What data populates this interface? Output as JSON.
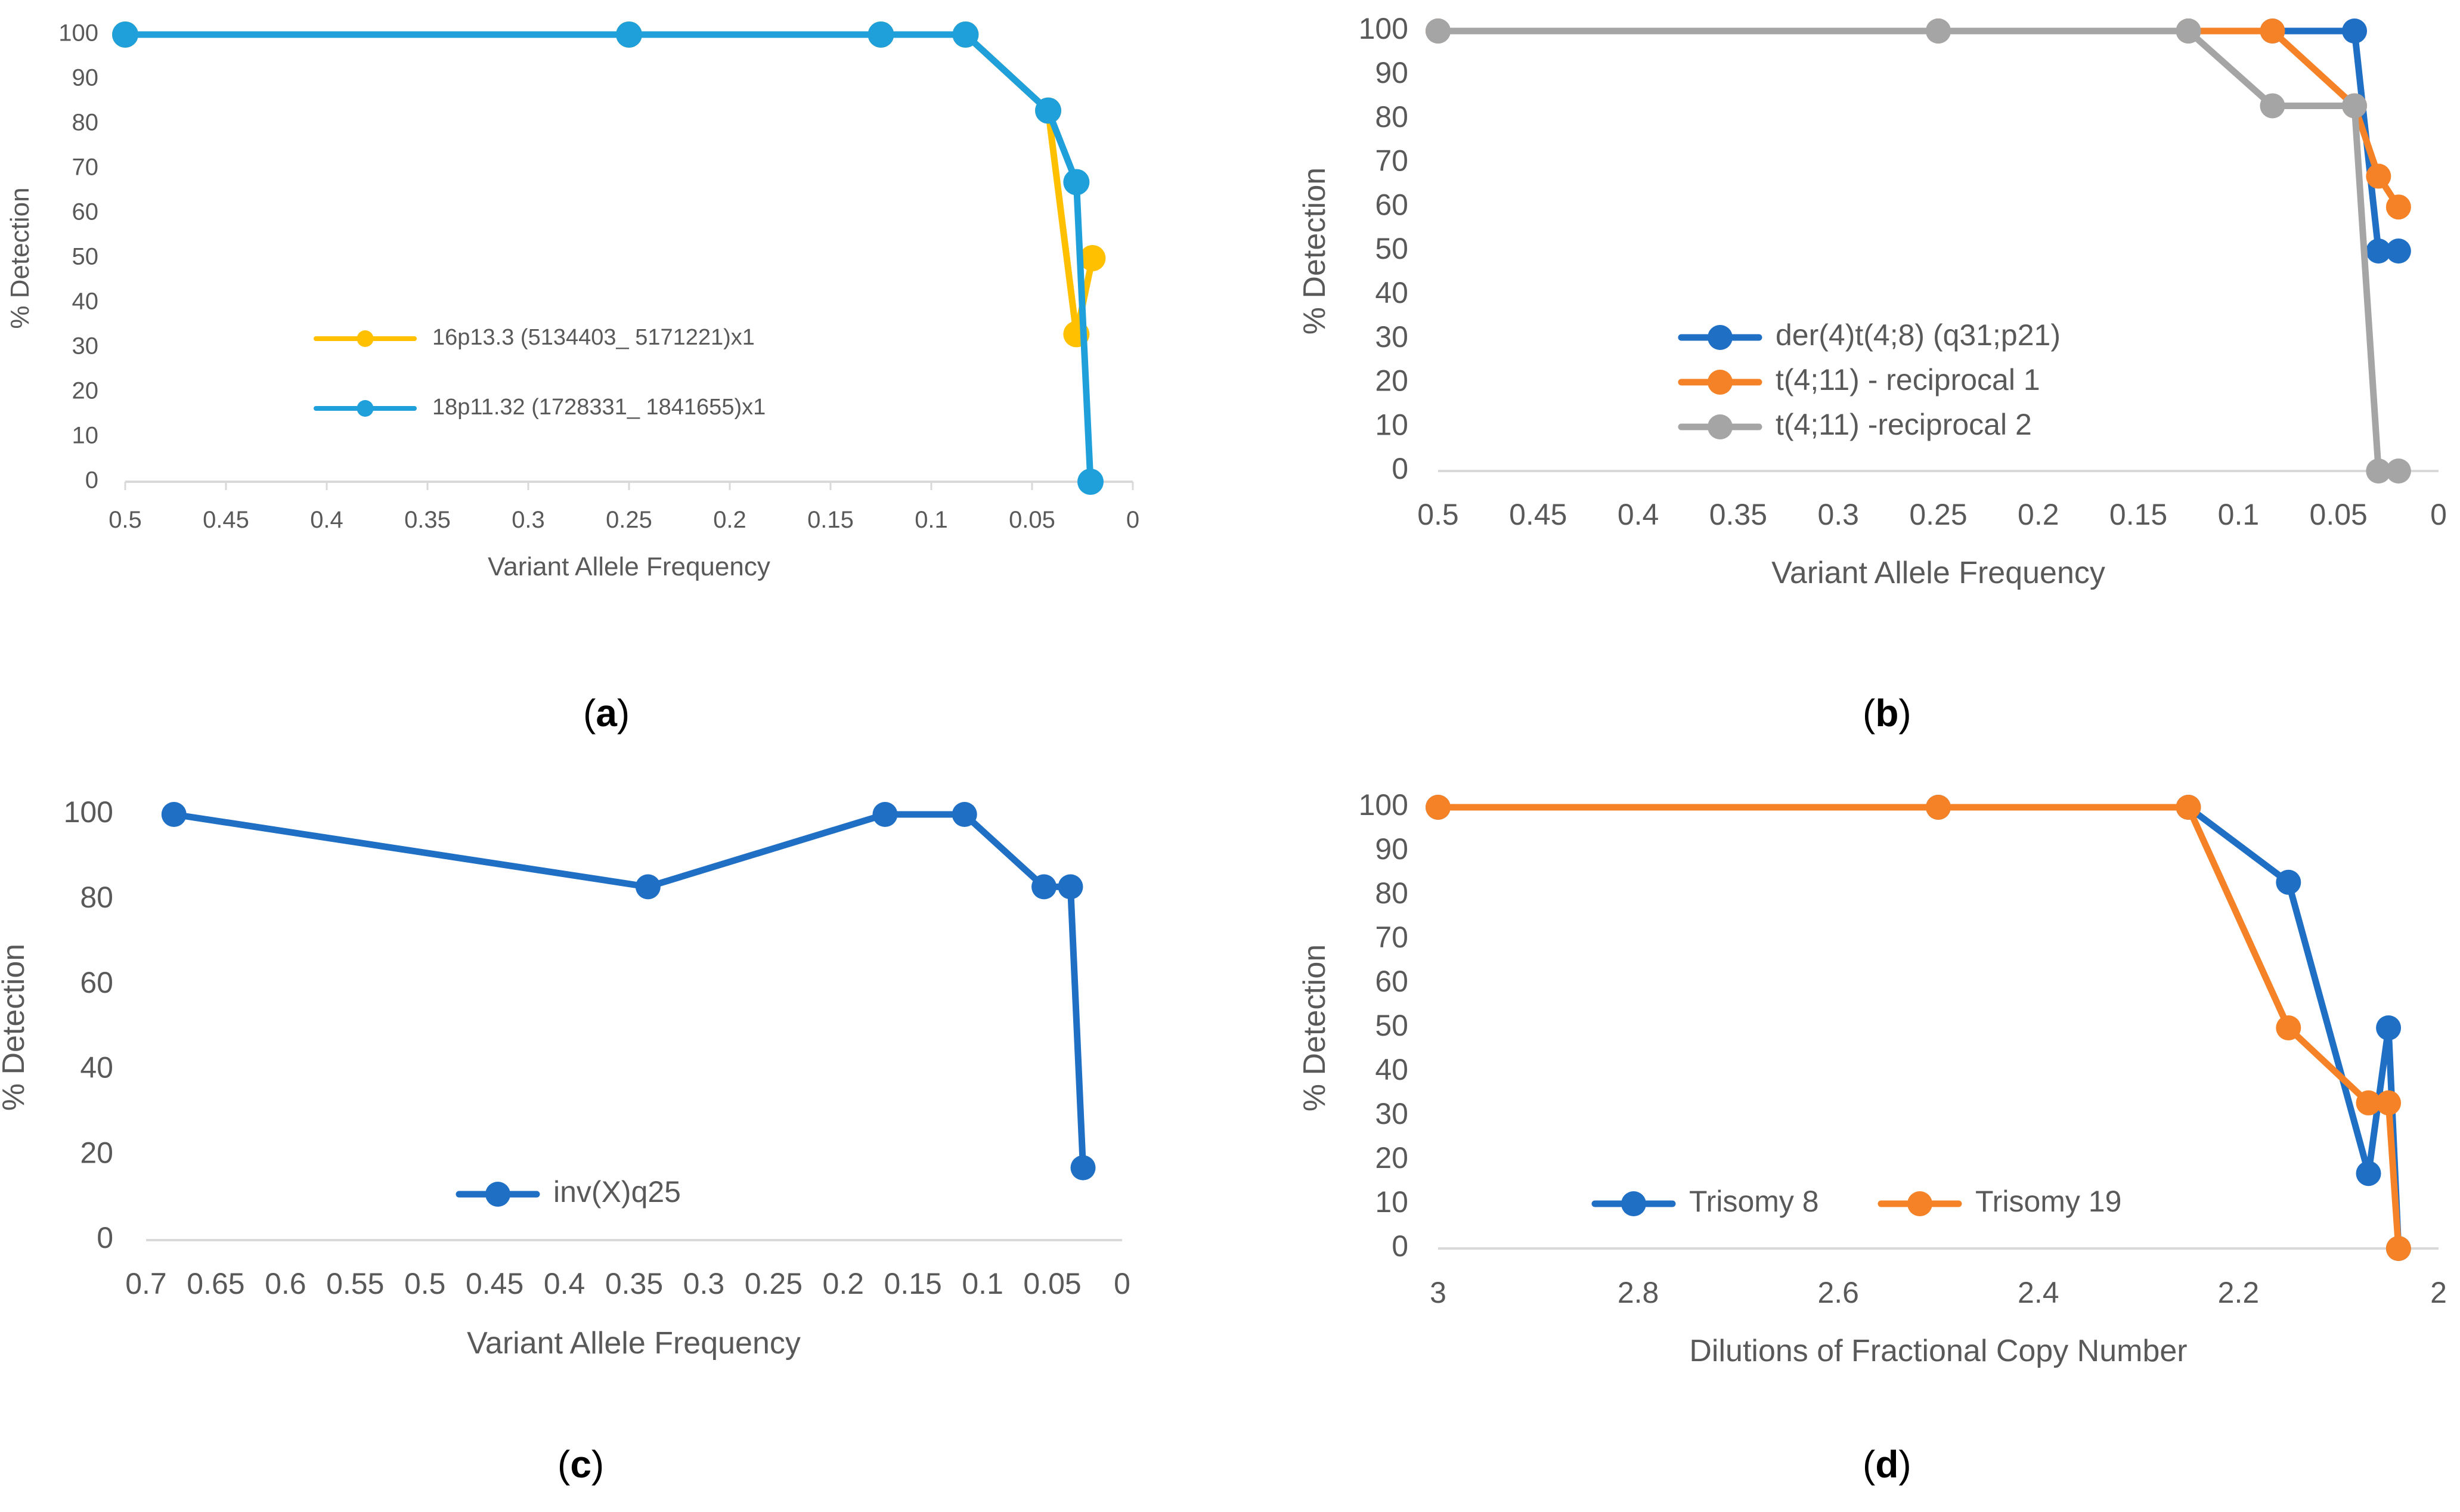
{
  "chart_data": [
    {
      "panel_label": "a",
      "type": "line",
      "xlabel": "Variant Allele Frequency",
      "ylabel": "% Detection",
      "xlim": [
        0.5,
        0
      ],
      "ylim": [
        0,
        100
      ],
      "x_ticks": [
        "0.5",
        "0.45",
        "0.4",
        "0.35",
        "0.3",
        "0.25",
        "0.2",
        "0.15",
        "0.1",
        "0.05",
        "0"
      ],
      "y_ticks": [
        "0",
        "10",
        "20",
        "30",
        "40",
        "50",
        "60",
        "70",
        "80",
        "90",
        "100"
      ],
      "legend_position": "center-left",
      "series": [
        {
          "name": "16p13.3 (5134403_ 5171221)x1",
          "color": "#FFC000",
          "x": [
            0.5,
            0.25,
            0.125,
            0.083,
            0.042,
            0.028,
            0.02
          ],
          "values": [
            100,
            100,
            100,
            100,
            83,
            33,
            50
          ]
        },
        {
          "name": "18p11.32 (1728331_ 1841655)x1",
          "color": "#1FA0DB",
          "x": [
            0.5,
            0.25,
            0.125,
            0.083,
            0.042,
            0.028,
            0.021
          ],
          "values": [
            100,
            100,
            100,
            100,
            83,
            67,
            0
          ]
        }
      ]
    },
    {
      "panel_label": "b",
      "type": "line",
      "xlabel": "Variant Allele Frequency",
      "ylabel": "% Detection",
      "xlim": [
        0.5,
        0
      ],
      "ylim": [
        0,
        100
      ],
      "x_ticks": [
        "0.5",
        "0.45",
        "0.4",
        "0.35",
        "0.3",
        "0.25",
        "0.2",
        "0.15",
        "0.1",
        "0.05",
        "0"
      ],
      "y_ticks": [
        "0",
        "10",
        "20",
        "30",
        "40",
        "50",
        "60",
        "70",
        "80",
        "90",
        "100"
      ],
      "legend_position": "bottom-left",
      "series": [
        {
          "name": "der(4)t(4;8) (q31;p21)",
          "color": "#1F6FC5",
          "x": [
            0.5,
            0.25,
            0.125,
            0.083,
            0.042,
            0.03,
            0.02
          ],
          "values": [
            100,
            100,
            100,
            100,
            100,
            50,
            50
          ]
        },
        {
          "name": "t(4;11) - reciprocal 1",
          "color": "#F58226",
          "x": [
            0.5,
            0.25,
            0.125,
            0.083,
            0.042,
            0.03,
            0.02
          ],
          "values": [
            100,
            100,
            100,
            100,
            83,
            67,
            60
          ]
        },
        {
          "name": "t(4;11) -reciprocal 2",
          "color": "#A5A5A5",
          "x": [
            0.5,
            0.25,
            0.125,
            0.083,
            0.042,
            0.03,
            0.02
          ],
          "values": [
            100,
            100,
            100,
            83,
            83,
            0,
            0
          ]
        }
      ]
    },
    {
      "panel_label": "c",
      "type": "line",
      "xlabel": "Variant Allele Frequency",
      "ylabel": "% Detection",
      "xlim": [
        0.7,
        0
      ],
      "ylim": [
        0,
        100
      ],
      "x_ticks": [
        "0.7",
        "0.65",
        "0.6",
        "0.55",
        "0.5",
        "0.45",
        "0.4",
        "0.35",
        "0.3",
        "0.25",
        "0.2",
        "0.15",
        "0.1",
        "0.05",
        "0"
      ],
      "y_ticks": [
        "0",
        "20",
        "40",
        "60",
        "80",
        "100"
      ],
      "legend_position": "bottom-center",
      "series": [
        {
          "name": "inv(X)q25",
          "color": "#1F6FC5",
          "x": [
            0.68,
            0.34,
            0.17,
            0.113,
            0.056,
            0.037,
            0.028
          ],
          "values": [
            100,
            83,
            100,
            100,
            83,
            83,
            17
          ]
        }
      ]
    },
    {
      "panel_label": "d",
      "type": "line",
      "xlabel": "Dilutions of Fractional Copy Number",
      "ylabel": "% Detection",
      "xlim": [
        3,
        2
      ],
      "ylim": [
        0,
        100
      ],
      "x_ticks": [
        "3",
        "2.8",
        "2.6",
        "2.4",
        "2.2",
        "2"
      ],
      "y_ticks": [
        "0",
        "10",
        "20",
        "30",
        "40",
        "50",
        "60",
        "70",
        "80",
        "90",
        "100"
      ],
      "legend_position": "bottom-left",
      "series": [
        {
          "name": "Trisomy 8",
          "color": "#1F6FC5",
          "x": [
            3,
            2.5,
            2.25,
            2.15,
            2.07,
            2.05,
            2.04
          ],
          "values": [
            100,
            100,
            100,
            83,
            17,
            50,
            0
          ]
        },
        {
          "name": "Trisomy 19",
          "color": "#F58226",
          "x": [
            3,
            2.5,
            2.25,
            2.15,
            2.07,
            2.05,
            2.04
          ],
          "values": [
            100,
            100,
            100,
            50,
            33,
            33,
            0
          ]
        }
      ]
    }
  ]
}
